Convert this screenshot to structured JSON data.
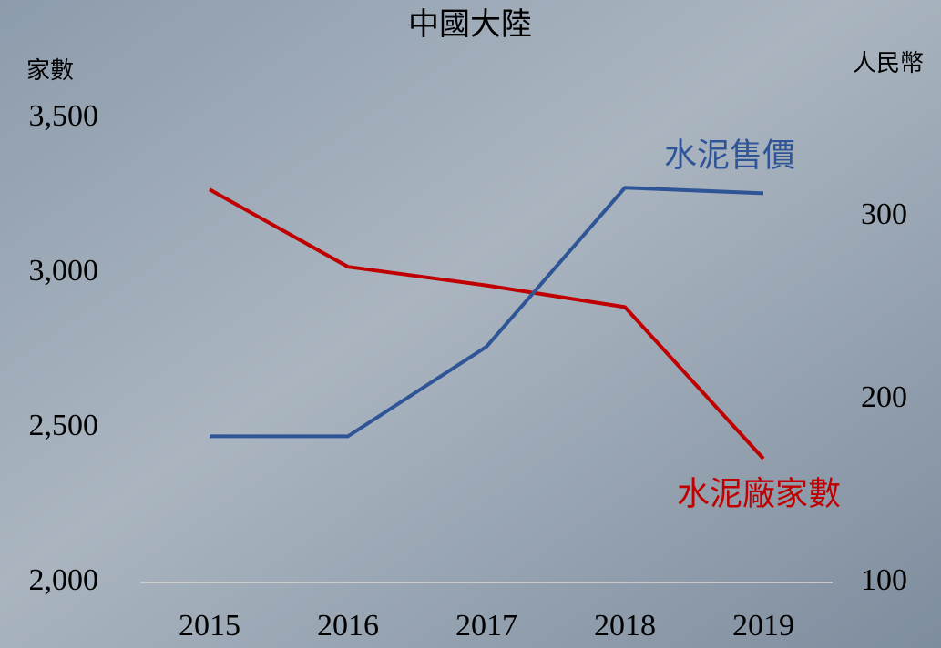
{
  "chart_data": {
    "type": "line",
    "title": "中國大陸",
    "ylabel": "家數",
    "y2label": "人民幣",
    "categories": [
      "2015",
      "2016",
      "2017",
      "2018",
      "2019"
    ],
    "series": [
      {
        "name": "水泥廠家數",
        "color": "#c00000",
        "values": [
          3270,
          3020,
          2960,
          2890,
          2400
        ]
      },
      {
        "name": "水泥售價",
        "color": "#2f5597",
        "axis": "y2",
        "values": [
          180,
          180,
          229,
          316,
          313
        ]
      }
    ],
    "ylim": [
      2000,
      3500
    ],
    "yticks": [
      {
        "value": 2000,
        "label": "2,000"
      },
      {
        "value": 2500,
        "label": "2,500"
      },
      {
        "value": 3000,
        "label": "3,000"
      },
      {
        "value": 3500,
        "label": "3,500"
      }
    ],
    "y2lim": [
      100,
      354
    ],
    "y2ticks": [
      100,
      200,
      300
    ]
  }
}
